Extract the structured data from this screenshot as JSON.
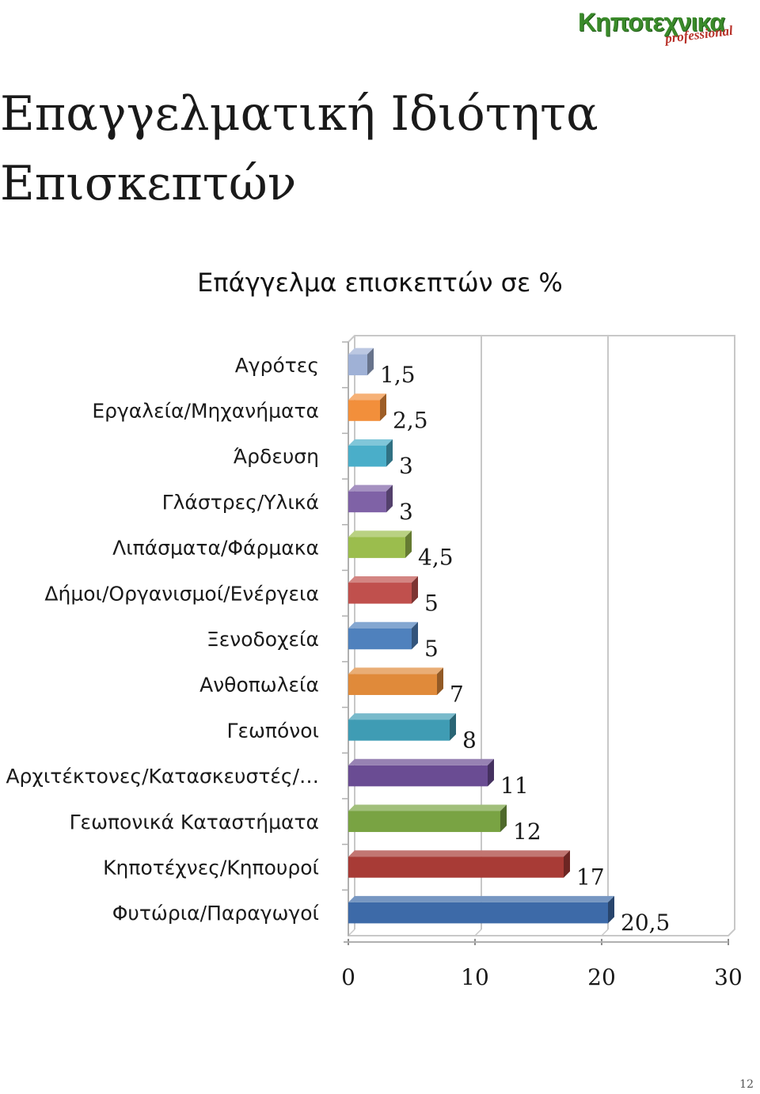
{
  "logo": {
    "main": "Κηποτεχνικα",
    "sub": "professional"
  },
  "page": {
    "title_lines": [
      "Επαγγελματική Ιδιότητα",
      "Επισκεπτών"
    ],
    "page_number": "12"
  },
  "chart_data": {
    "type": "bar",
    "orientation": "horizontal",
    "title": "Επάγγελμα  επισκεπτών σε %",
    "categories": [
      "Αγρότες",
      "Εργαλεία/Μηχανήματα",
      "Άρδευση",
      "Γλάστρες/Υλικά",
      "Λιπάσματα/Φάρμακα",
      "Δήμοι/Οργανισμοί/Ενέργεια",
      "Ξενοδοχεία",
      "Ανθοπωλεία",
      "Γεωπόνοι",
      "Αρχιτέκτονες/Κατασκευστές/…",
      "Γεωπονικά Καταστήματα",
      "Κηποτέχνες/Κηπουροί",
      "Φυτώρια/Παραγωγοί"
    ],
    "values": [
      1.5,
      2.5,
      3,
      3,
      4.5,
      5,
      5,
      7,
      8,
      11,
      12,
      17,
      20.5
    ],
    "value_labels": [
      "1,5",
      "2,5",
      "3",
      "3",
      "4,5",
      "5",
      "5",
      "7",
      "8",
      "11",
      "12",
      "17",
      "20,5"
    ],
    "xlim": [
      0,
      30
    ],
    "x_ticks": [
      "0",
      "10",
      "20",
      "30"
    ],
    "grid": true,
    "legend": "none",
    "colors": [
      "#9fb1d6",
      "#f28f3b",
      "#4aaec9",
      "#7f62a6",
      "#9bbd4d",
      "#c0504d",
      "#4f81bd",
      "#e08a3a",
      "#3f9cb4",
      "#6a4c93",
      "#79a343",
      "#a83b36",
      "#3d6aa8"
    ]
  }
}
